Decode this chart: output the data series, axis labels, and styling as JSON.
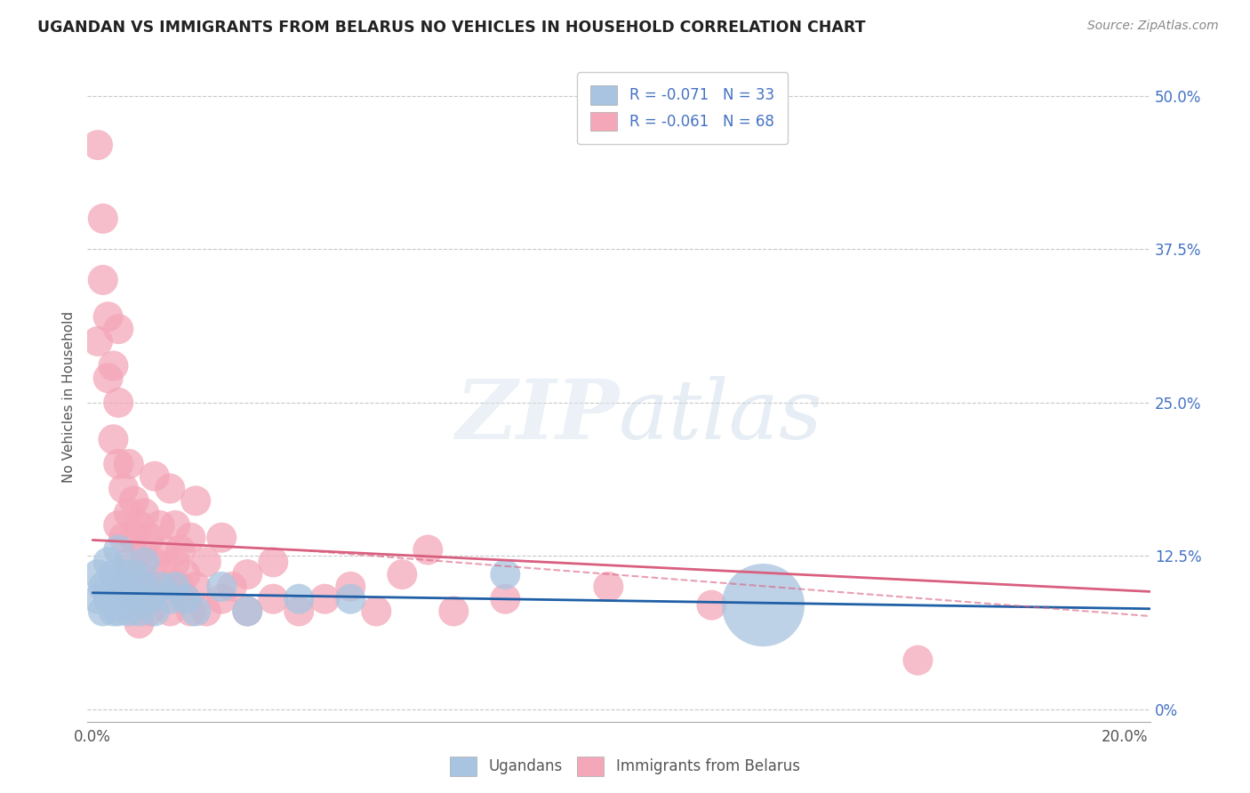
{
  "title": "UGANDAN VS IMMIGRANTS FROM BELARUS NO VEHICLES IN HOUSEHOLD CORRELATION CHART",
  "source": "Source: ZipAtlas.com",
  "ylabel": "No Vehicles in Household",
  "xlim": [
    -0.001,
    0.205
  ],
  "ylim": [
    -0.01,
    0.52
  ],
  "yticks": [
    0.0,
    0.125,
    0.25,
    0.375,
    0.5
  ],
  "ytick_labels": [
    "0%",
    "12.5%",
    "25.0%",
    "37.5%",
    "50.0%"
  ],
  "ugandan_R": -0.071,
  "ugandan_N": 33,
  "belarus_R": -0.061,
  "belarus_N": 68,
  "ugandan_color": "#a8c4e0",
  "belarus_color": "#f4a7b9",
  "ugandan_line_color": "#1f5fa6",
  "belarus_line_color": "#d95f7f",
  "background_color": "#ffffff",
  "grid_color": "#c8c8c8",
  "legend_label_ugandan": "Ugandans",
  "legend_label_belarus": "Immigrants from Belarus",
  "ugandan_x": [
    0.001,
    0.001,
    0.002,
    0.002,
    0.003,
    0.003,
    0.004,
    0.004,
    0.005,
    0.005,
    0.005,
    0.006,
    0.006,
    0.007,
    0.007,
    0.008,
    0.008,
    0.009,
    0.01,
    0.01,
    0.011,
    0.012,
    0.013,
    0.015,
    0.016,
    0.018,
    0.02,
    0.025,
    0.03,
    0.04,
    0.05,
    0.08,
    0.13
  ],
  "ugandan_y": [
    0.09,
    0.11,
    0.08,
    0.1,
    0.09,
    0.12,
    0.08,
    0.11,
    0.1,
    0.13,
    0.08,
    0.09,
    0.11,
    0.08,
    0.1,
    0.09,
    0.11,
    0.08,
    0.1,
    0.12,
    0.09,
    0.08,
    0.1,
    0.09,
    0.1,
    0.09,
    0.08,
    0.1,
    0.08,
    0.09,
    0.09,
    0.11,
    0.085
  ],
  "ugandan_size": [
    40,
    40,
    40,
    40,
    40,
    40,
    40,
    40,
    40,
    40,
    40,
    40,
    40,
    40,
    40,
    40,
    40,
    40,
    40,
    40,
    40,
    40,
    40,
    40,
    40,
    40,
    40,
    40,
    40,
    40,
    40,
    40,
    300
  ],
  "belarus_x": [
    0.001,
    0.001,
    0.002,
    0.002,
    0.003,
    0.003,
    0.004,
    0.004,
    0.005,
    0.005,
    0.005,
    0.005,
    0.006,
    0.006,
    0.006,
    0.007,
    0.007,
    0.007,
    0.008,
    0.008,
    0.008,
    0.009,
    0.009,
    0.009,
    0.01,
    0.01,
    0.01,
    0.011,
    0.011,
    0.011,
    0.012,
    0.012,
    0.013,
    0.013,
    0.014,
    0.014,
    0.015,
    0.015,
    0.016,
    0.016,
    0.017,
    0.017,
    0.018,
    0.018,
    0.019,
    0.019,
    0.02,
    0.02,
    0.022,
    0.022,
    0.025,
    0.025,
    0.027,
    0.03,
    0.03,
    0.035,
    0.035,
    0.04,
    0.045,
    0.05,
    0.055,
    0.06,
    0.065,
    0.07,
    0.08,
    0.1,
    0.12,
    0.16
  ],
  "belarus_y": [
    0.46,
    0.3,
    0.4,
    0.35,
    0.32,
    0.27,
    0.22,
    0.28,
    0.2,
    0.25,
    0.15,
    0.31,
    0.18,
    0.14,
    0.1,
    0.16,
    0.12,
    0.2,
    0.14,
    0.09,
    0.17,
    0.11,
    0.15,
    0.07,
    0.13,
    0.09,
    0.16,
    0.1,
    0.14,
    0.08,
    0.19,
    0.12,
    0.1,
    0.15,
    0.11,
    0.13,
    0.18,
    0.08,
    0.12,
    0.15,
    0.1,
    0.13,
    0.09,
    0.11,
    0.14,
    0.08,
    0.17,
    0.1,
    0.12,
    0.08,
    0.14,
    0.09,
    0.1,
    0.11,
    0.08,
    0.09,
    0.12,
    0.08,
    0.09,
    0.1,
    0.08,
    0.11,
    0.13,
    0.08,
    0.09,
    0.1,
    0.085,
    0.04
  ],
  "belarus_size": [
    40,
    40,
    40,
    40,
    40,
    40,
    40,
    40,
    40,
    40,
    40,
    40,
    40,
    40,
    40,
    40,
    40,
    40,
    40,
    40,
    40,
    40,
    40,
    40,
    40,
    40,
    40,
    40,
    40,
    40,
    40,
    40,
    40,
    40,
    40,
    40,
    40,
    40,
    40,
    40,
    40,
    40,
    40,
    40,
    40,
    40,
    40,
    40,
    40,
    40,
    40,
    40,
    40,
    40,
    40,
    40,
    40,
    40,
    40,
    40,
    40,
    40,
    40,
    40,
    40,
    40,
    40,
    40
  ],
  "ugandan_trendline_x": [
    0.0,
    0.205
  ],
  "ugandan_trendline_y": [
    0.095,
    0.082
  ],
  "belarus_trendline_x": [
    0.0,
    0.205
  ],
  "belarus_trendline_y": [
    0.138,
    0.096
  ]
}
